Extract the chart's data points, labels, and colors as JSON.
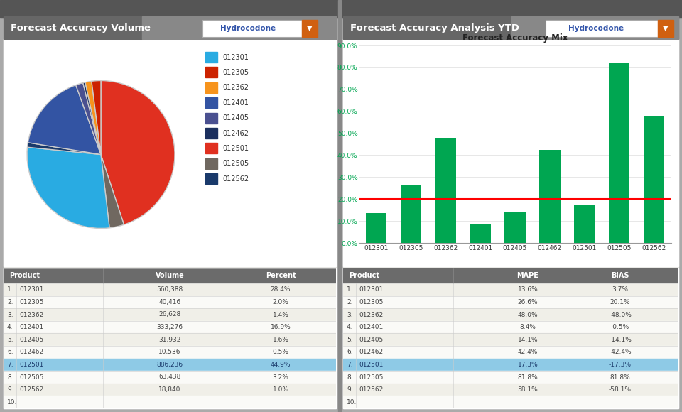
{
  "left_title": "Forecast Accuracy Volume",
  "right_title": "Forecast Accuracy Analysis YTD",
  "dropdown_label": "Hydrocodone",
  "bar_chart_title": "Forecast Accuracy Mix",
  "products": [
    "012301",
    "012305",
    "012362",
    "012401",
    "012405",
    "012462",
    "012501",
    "012505",
    "012562"
  ],
  "pie_colors": [
    "#29ABE2",
    "#CC2200",
    "#F7941D",
    "#3354A3",
    "#4A5090",
    "#1B2F5E",
    "#E03020",
    "#706860",
    "#1A3A6B"
  ],
  "pie_values": [
    28.4,
    2.0,
    1.4,
    16.9,
    1.6,
    0.5,
    44.9,
    3.2,
    1.0
  ],
  "pie_legend_colors": [
    "#29ABE2",
    "#CC2200",
    "#F7941D",
    "#3354A3",
    "#4A5090",
    "#1B2F5E",
    "#E03020",
    "#706860",
    "#1A3A6B"
  ],
  "pie_volumes": [
    "560,388",
    "40,416",
    "26,628",
    "333,276",
    "31,932",
    "10,536",
    "886,236",
    "63,438",
    "18,840"
  ],
  "pie_percents": [
    "28.4%",
    "2.0%",
    "1.4%",
    "16.9%",
    "1.6%",
    "0.5%",
    "44.9%",
    "3.2%",
    "1.0%"
  ],
  "bar_values": [
    13.6,
    26.6,
    48.0,
    8.4,
    14.1,
    42.4,
    17.3,
    81.8,
    58.1
  ],
  "target_line": 20.0,
  "mape": [
    "13.6%",
    "26.6%",
    "48.0%",
    "8.4%",
    "14.1%",
    "42.4%",
    "17.3%",
    "81.8%",
    "58.1%"
  ],
  "bias": [
    "3.7%",
    "20.1%",
    "-48.0%",
    "-0.5%",
    "-14.1%",
    "-42.4%",
    "-17.3%",
    "81.8%",
    "-58.1%"
  ],
  "bar_color": "#00A651",
  "target_color": "#FF0000",
  "highlight_row": 6,
  "highlight_color": "#8ECAE6",
  "table_header_bg": "#6B6B6B",
  "table_alt_row": "#F0EFE8",
  "table_row": "#FAFAF7",
  "outer_bg": "#AAAAAA",
  "panel_outer_bg": "#888888",
  "header_bg": "#606060",
  "white": "#FFFFFF"
}
